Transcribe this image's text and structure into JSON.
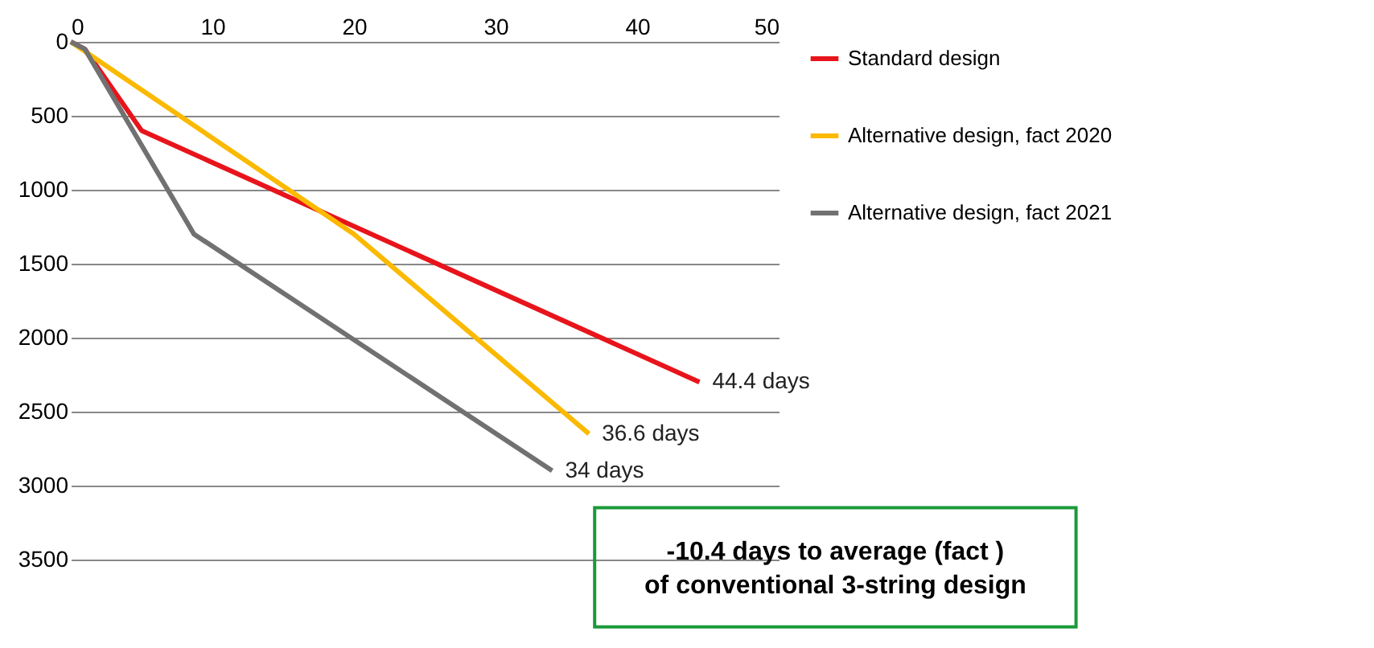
{
  "chart_data": {
    "type": "line",
    "xlim": [
      0,
      50
    ],
    "xticks": [
      0,
      10,
      20,
      30,
      40,
      50
    ],
    "ylim": [
      3500,
      0
    ],
    "yticks": [
      0,
      500,
      1000,
      1500,
      2000,
      2500,
      3000,
      3500
    ],
    "grid": "y",
    "legend": "top right",
    "marker": "none",
    "line_style": "solid",
    "series": [
      {
        "name": "Standard design",
        "color": "#e8141b",
        "x": [
          0,
          1,
          5,
          44.4
        ],
        "values": [
          0,
          50,
          600,
          2300
        ]
      },
      {
        "name": "Alternative design, fact 2020",
        "color": "#fbb900",
        "x": [
          0,
          20,
          36.6
        ],
        "values": [
          0,
          1300,
          2650
        ]
      },
      {
        "name": "Alternative design, fact 2021",
        "color": "#717171",
        "x": [
          0,
          1,
          8.7,
          34
        ],
        "values": [
          0,
          50,
          1300,
          2900
        ]
      }
    ],
    "annotations": [
      {
        "text": "44.4 days",
        "x": 44.4,
        "y": 2300
      },
      {
        "text": "36.6 days",
        "x": 36.6,
        "y": 2650
      },
      {
        "text": "34 days",
        "x": 34,
        "y": 2900
      },
      "-10.4 days to average (fact ) of conventional 3-string design"
    ]
  }
}
